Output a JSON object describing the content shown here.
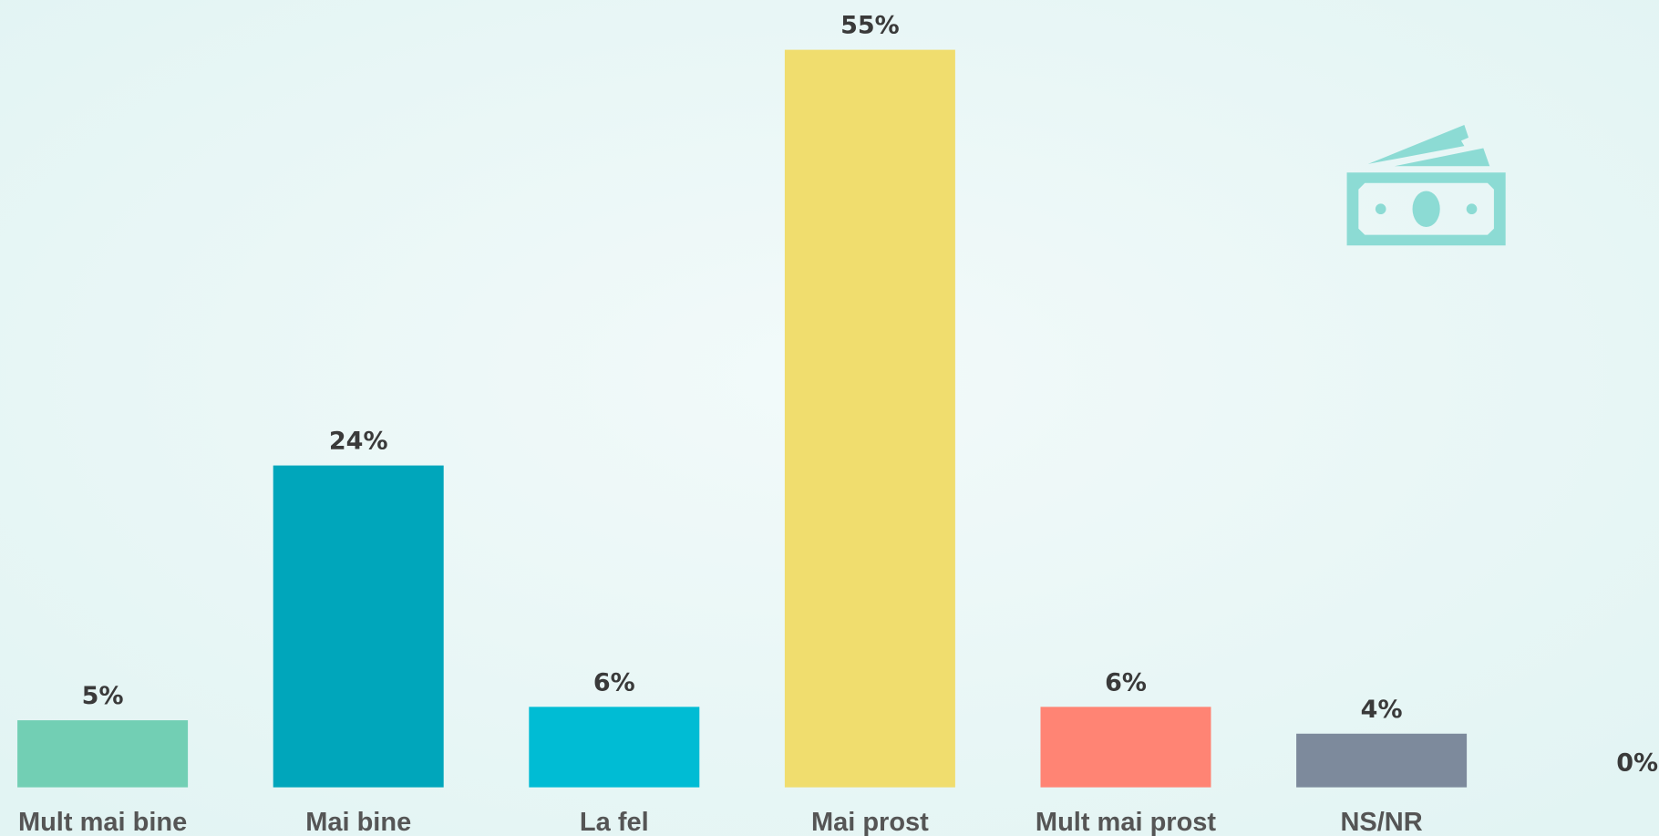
{
  "chart_data": {
    "type": "bar",
    "categories": [
      "Mult mai bine",
      "Mai bine",
      "La fel",
      "Mai prost",
      "Mult mai prost",
      "NS/NR",
      null
    ],
    "values": [
      5,
      24,
      6,
      55,
      6,
      4,
      0
    ],
    "value_labels": [
      "5%",
      "24%",
      "6%",
      "55%",
      "6%",
      "4%",
      "0%"
    ],
    "colors": [
      "#72cfb4",
      "#00a6bb",
      "#00bcd4",
      "#f0dd6e",
      "#ff8474",
      "#7d8a9c",
      "#7d8a9c"
    ]
  }
}
